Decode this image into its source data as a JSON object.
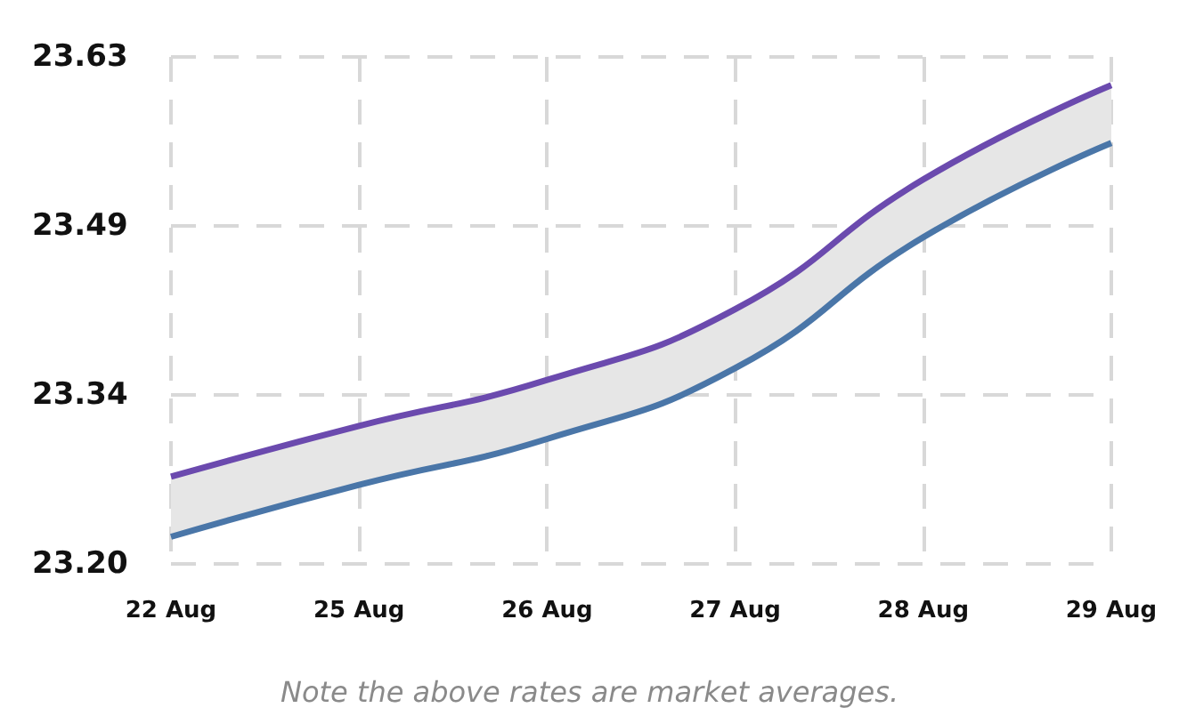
{
  "chart_data": {
    "type": "line",
    "categories": [
      "22 Aug",
      "25 Aug",
      "26 Aug",
      "27 Aug",
      "28 Aug",
      "29 Aug"
    ],
    "series": [
      {
        "color": "#6b4aae",
        "values": [
          23.274,
          23.317,
          23.356,
          23.416,
          23.526,
          23.606
        ],
        "lower": [
          23.223,
          23.267,
          23.306,
          23.366,
          23.477,
          23.557
        ],
        "upper": [
          23.274,
          23.317,
          23.356,
          23.416,
          23.526,
          23.606
        ]
      },
      {
        "color": "#4a76a8",
        "values": [
          23.223,
          23.267,
          23.306,
          23.366,
          23.477,
          23.557
        ]
      }
    ],
    "ylim": [
      23.2,
      23.63
    ],
    "yticks": [
      {
        "value": 23.2,
        "label": "23.20"
      },
      {
        "value": 23.3433,
        "label": "23.34"
      },
      {
        "value": 23.4867,
        "label": "23.49"
      },
      {
        "value": 23.63,
        "label": "23.63"
      }
    ],
    "grid": true,
    "marker": "none",
    "line_style": "solid",
    "annotations": [
      "Note the above rates are market averages."
    ]
  }
}
